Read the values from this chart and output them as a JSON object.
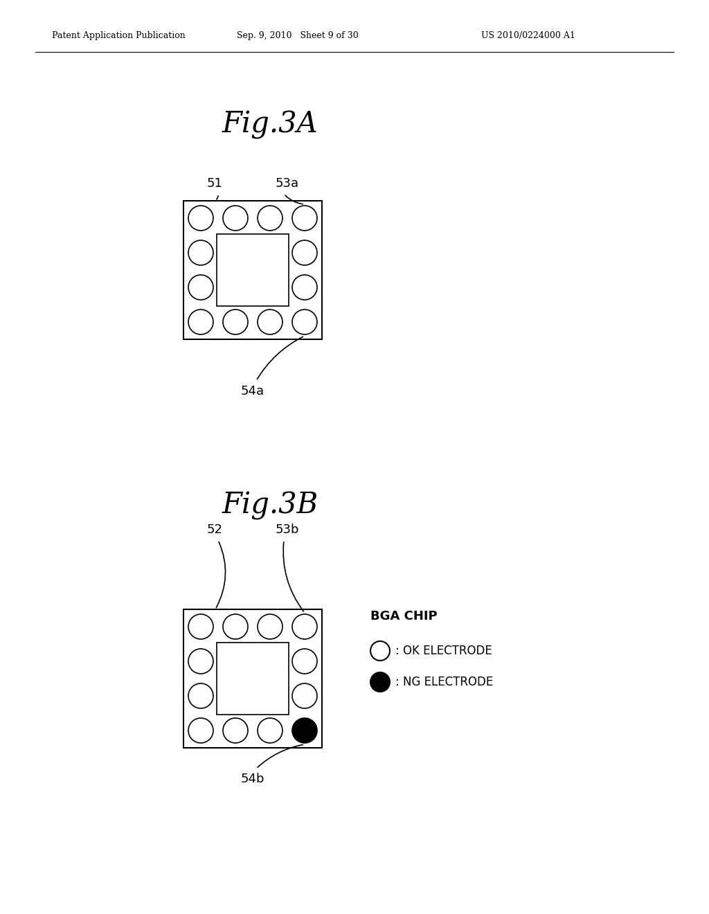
{
  "bg_color": "#ffffff",
  "header_left": "Patent Application Publication",
  "header_mid": "Sep. 9, 2010   Sheet 9 of 30",
  "header_right": "US 2010/0224000 A1",
  "fig3a_title": "Fig.3A",
  "fig3b_title": "Fig.3B",
  "label_51": "51",
  "label_53a": "53a",
  "label_54a": "54a",
  "label_52": "52",
  "label_53b": "53b",
  "label_54b": "54b",
  "legend_title": "BGA CHIP",
  "legend_ok": ": OK ELECTRODE",
  "legend_ng": ": NG ELECTRODE"
}
